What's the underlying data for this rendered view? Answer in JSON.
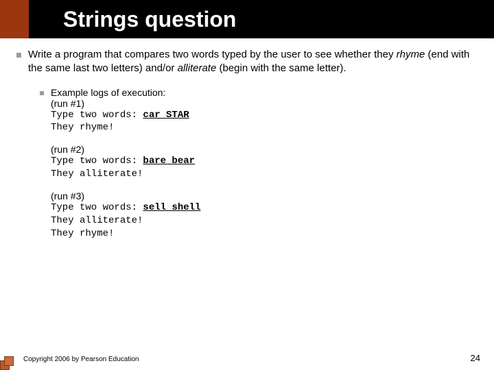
{
  "title": "Strings question",
  "main_para_parts": {
    "p1": "Write a program that compares two words typed by the user to see whether they ",
    "rhyme": "rhyme",
    "p2": " (end with the same last two letters) and/or ",
    "alliterate": "alliterate",
    "p3": " (begin with the same letter)."
  },
  "example_header": "Example logs of execution:",
  "runs": {
    "r1": {
      "label": "(run #1)",
      "prompt": "Type two words: ",
      "input": "car STAR",
      "out1": "They rhyme!"
    },
    "r2": {
      "label": "(run #2)",
      "prompt": "Type two words: ",
      "input": "bare bear",
      "out1": "They alliterate!"
    },
    "r3": {
      "label": "(run #3)",
      "prompt": "Type two words: ",
      "input": "sell shell",
      "out1": "They alliterate!",
      "out2": "They rhyme!"
    }
  },
  "footer": {
    "copyright": "Copyright 2006 by Pearson Education",
    "page": "24"
  },
  "colors": {
    "accent": "#9c3610",
    "title_bg": "#000000",
    "title_fg": "#ffffff",
    "bullet": "#9c9c9c"
  }
}
